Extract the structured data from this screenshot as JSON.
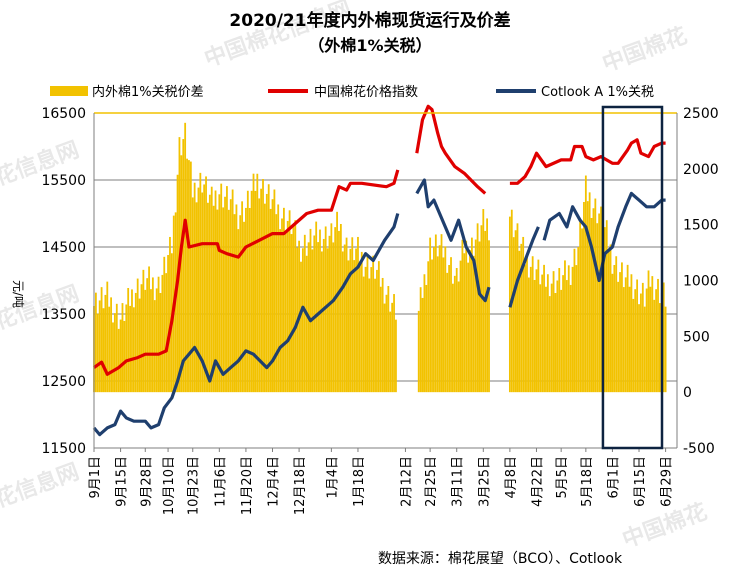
{
  "chart_data": {
    "type": "bar+line",
    "title": "2020/21年度内外棉现货运行及价差",
    "subtitle": "（外棉1%关税）",
    "ylabel_left": "元/吨",
    "source": "数据来源：棉花展望（BCO）、Cotlook",
    "legend": {
      "position": "top",
      "entries": [
        "内外棉1%关税价差",
        "中国棉花价格指数",
        "Cotlook A 1%关税"
      ]
    },
    "colors": {
      "spread_bar": "#f2c200",
      "china_index": "#e00000",
      "cotlook": "#1f3f6e",
      "highlight_box": "#0d2340",
      "axis": "#7f7f7f",
      "grid": "#7f7f7f",
      "top_border": "#f2c200"
    },
    "left_axis": {
      "min": 11500,
      "max": 16500,
      "ticks": [
        "16500",
        "15500",
        "14500",
        "13500",
        "12500",
        "11500"
      ]
    },
    "right_axis": {
      "min": -500,
      "max": 2500,
      "ticks": [
        "2500",
        "2000",
        "1500",
        "1000",
        "500",
        "0",
        "-500"
      ]
    },
    "x_tick_labels": [
      "9月1日",
      "9月15日",
      "9月28日",
      "10月10日",
      "10月23日",
      "11月6日",
      "11月20日",
      "12月4日",
      "12月18日",
      "1月4日",
      "1月18日",
      "2月12日",
      "2月25日",
      "3月11日",
      "3月25日",
      "4月8日",
      "4月22日",
      "5月5日",
      "5月18日",
      "6月1日",
      "6月15日",
      "6月29日"
    ],
    "x_tick_dates": [
      "2020-09-01",
      "2020-09-15",
      "2020-09-28",
      "2020-10-10",
      "2020-10-23",
      "2020-11-06",
      "2020-11-20",
      "2020-12-04",
      "2020-12-18",
      "2021-01-04",
      "2021-01-18",
      "2021-02-12",
      "2021-02-25",
      "2021-03-11",
      "2021-03-25",
      "2021-04-08",
      "2021-04-22",
      "2021-05-05",
      "2021-05-18",
      "2021-06-01",
      "2021-06-15",
      "2021-06-29"
    ],
    "x_end_date": "2021-07-05",
    "highlight_start_date": "2021-05-27",
    "series": [
      {
        "name": "中国棉花价格指数",
        "axis": "left",
        "type": "line",
        "points": [
          [
            "2020-09-01",
            12700
          ],
          [
            "2020-09-05",
            12780
          ],
          [
            "2020-09-08",
            12600
          ],
          [
            "2020-09-14",
            12700
          ],
          [
            "2020-09-18",
            12800
          ],
          [
            "2020-09-24",
            12850
          ],
          [
            "2020-09-28",
            12900
          ],
          [
            "2020-10-05",
            12900
          ],
          [
            "2020-10-09",
            12950
          ],
          [
            "2020-10-12",
            13400
          ],
          [
            "2020-10-15",
            14000
          ],
          [
            "2020-10-17",
            14500
          ],
          [
            "2020-10-19",
            14900
          ],
          [
            "2020-10-21",
            14500
          ],
          [
            "2020-10-28",
            14550
          ],
          [
            "2020-11-05",
            14550
          ],
          [
            "2020-11-06",
            14450
          ],
          [
            "2020-11-10",
            14400
          ],
          [
            "2020-11-16",
            14350
          ],
          [
            "2020-11-20",
            14500
          ],
          [
            "2020-11-27",
            14600
          ],
          [
            "2020-12-04",
            14700
          ],
          [
            "2020-12-10",
            14700
          ],
          [
            "2020-12-16",
            14850
          ],
          [
            "2020-12-22",
            15000
          ],
          [
            "2020-12-28",
            15050
          ],
          [
            "2021-01-04",
            15050
          ],
          [
            "2021-01-08",
            15400
          ],
          [
            "2021-01-12",
            15350
          ],
          [
            "2021-01-14",
            15450
          ],
          [
            "2021-01-20",
            15450
          ],
          [
            "2021-02-02",
            15400
          ],
          [
            "2021-02-06",
            15450
          ],
          [
            "2021-02-08",
            15650
          ],
          [
            "2021-02-18",
            15900
          ],
          [
            "2021-02-21",
            16400
          ],
          [
            "2021-02-24",
            16600
          ],
          [
            "2021-02-26",
            16550
          ],
          [
            "2021-03-01",
            16200
          ],
          [
            "2021-03-03",
            16000
          ],
          [
            "2021-03-05",
            15900
          ],
          [
            "2021-03-10",
            15700
          ],
          [
            "2021-03-15",
            15600
          ],
          [
            "2021-03-22",
            15400
          ],
          [
            "2021-03-26",
            15300
          ],
          [
            "2021-04-08",
            15450
          ],
          [
            "2021-04-12",
            15450
          ],
          [
            "2021-04-16",
            15550
          ],
          [
            "2021-04-19",
            15700
          ],
          [
            "2021-04-22",
            15900
          ],
          [
            "2021-04-27",
            15700
          ],
          [
            "2021-05-05",
            15800
          ],
          [
            "2021-05-10",
            15800
          ],
          [
            "2021-05-12",
            16000
          ],
          [
            "2021-05-16",
            16000
          ],
          [
            "2021-05-18",
            15850
          ],
          [
            "2021-05-22",
            15800
          ],
          [
            "2021-05-26",
            15850
          ],
          [
            "2021-06-01",
            15750
          ],
          [
            "2021-06-04",
            15750
          ],
          [
            "2021-06-09",
            15950
          ],
          [
            "2021-06-11",
            16050
          ],
          [
            "2021-06-14",
            16100
          ],
          [
            "2021-06-16",
            15900
          ],
          [
            "2021-06-20",
            15850
          ],
          [
            "2021-06-23",
            16000
          ],
          [
            "2021-06-27",
            16050
          ],
          [
            "2021-06-29",
            16050
          ]
        ],
        "gaps_after": [
          "2021-02-08",
          "2021-03-26"
        ]
      },
      {
        "name": "Cotlook A 1%关税",
        "axis": "left",
        "type": "line",
        "points": [
          [
            "2020-09-01",
            11800
          ],
          [
            "2020-09-04",
            11700
          ],
          [
            "2020-09-08",
            11800
          ],
          [
            "2020-09-12",
            11850
          ],
          [
            "2020-09-15",
            12050
          ],
          [
            "2020-09-18",
            11950
          ],
          [
            "2020-09-22",
            11900
          ],
          [
            "2020-09-28",
            11900
          ],
          [
            "2020-10-01",
            11800
          ],
          [
            "2020-10-05",
            11850
          ],
          [
            "2020-10-08",
            12100
          ],
          [
            "2020-10-12",
            12250
          ],
          [
            "2020-10-15",
            12500
          ],
          [
            "2020-10-18",
            12800
          ],
          [
            "2020-10-21",
            12900
          ],
          [
            "2020-10-24",
            13000
          ],
          [
            "2020-10-28",
            12800
          ],
          [
            "2020-11-01",
            12500
          ],
          [
            "2020-11-04",
            12800
          ],
          [
            "2020-11-08",
            12600
          ],
          [
            "2020-11-12",
            12700
          ],
          [
            "2020-11-16",
            12800
          ],
          [
            "2020-11-20",
            12950
          ],
          [
            "2020-11-24",
            12900
          ],
          [
            "2020-12-01",
            12700
          ],
          [
            "2020-12-04",
            12800
          ],
          [
            "2020-12-08",
            13000
          ],
          [
            "2020-12-12",
            13100
          ],
          [
            "2020-12-16",
            13300
          ],
          [
            "2020-12-20",
            13600
          ],
          [
            "2020-12-24",
            13400
          ],
          [
            "2020-12-28",
            13500
          ],
          [
            "2021-01-01",
            13600
          ],
          [
            "2021-01-05",
            13700
          ],
          [
            "2021-01-10",
            13900
          ],
          [
            "2021-01-14",
            14100
          ],
          [
            "2021-01-18",
            14200
          ],
          [
            "2021-01-22",
            14400
          ],
          [
            "2021-01-26",
            14300
          ],
          [
            "2021-02-01",
            14600
          ],
          [
            "2021-02-06",
            14800
          ],
          [
            "2021-02-08",
            15000
          ],
          [
            "2021-02-18",
            15300
          ],
          [
            "2021-02-22",
            15500
          ],
          [
            "2021-02-24",
            15100
          ],
          [
            "2021-02-27",
            15200
          ],
          [
            "2021-03-02",
            15000
          ],
          [
            "2021-03-05",
            14800
          ],
          [
            "2021-03-08",
            14600
          ],
          [
            "2021-03-12",
            14900
          ],
          [
            "2021-03-16",
            14500
          ],
          [
            "2021-03-20",
            14300
          ],
          [
            "2021-03-23",
            13800
          ],
          [
            "2021-03-26",
            13700
          ],
          [
            "2021-03-28",
            13900
          ],
          [
            "2021-04-08",
            13600
          ],
          [
            "2021-04-12",
            14000
          ],
          [
            "2021-04-16",
            14300
          ],
          [
            "2021-04-20",
            14600
          ],
          [
            "2021-04-23",
            14800
          ],
          [
            "2021-04-26",
            14600
          ],
          [
            "2021-04-29",
            14900
          ],
          [
            "2021-05-04",
            15000
          ],
          [
            "2021-05-08",
            14800
          ],
          [
            "2021-05-11",
            15100
          ],
          [
            "2021-05-15",
            14900
          ],
          [
            "2021-05-18",
            14800
          ],
          [
            "2021-05-21",
            14500
          ],
          [
            "2021-05-25",
            14000
          ],
          [
            "2021-05-28",
            14400
          ],
          [
            "2021-06-01",
            14500
          ],
          [
            "2021-06-04",
            14800
          ],
          [
            "2021-06-08",
            15100
          ],
          [
            "2021-06-11",
            15300
          ],
          [
            "2021-06-15",
            15200
          ],
          [
            "2021-06-19",
            15100
          ],
          [
            "2021-06-23",
            15100
          ],
          [
            "2021-06-27",
            15200
          ],
          [
            "2021-06-29",
            15200
          ]
        ],
        "gaps_after": [
          "2021-02-08",
          "2021-03-28",
          "2021-04-23"
        ]
      },
      {
        "name": "内外棉1%关税价差",
        "axis": "right",
        "type": "bar",
        "points": [
          [
            "2020-09-01",
            800
          ],
          [
            "2020-09-08",
            850
          ],
          [
            "2020-09-15",
            650
          ],
          [
            "2020-09-22",
            900
          ],
          [
            "2020-09-28",
            1000
          ],
          [
            "2020-10-05",
            950
          ],
          [
            "2020-10-12",
            1300
          ],
          [
            "2020-10-16",
            2200
          ],
          [
            "2020-10-19",
            2300
          ],
          [
            "2020-10-23",
            1800
          ],
          [
            "2020-10-28",
            1900
          ],
          [
            "2020-11-02",
            1700
          ],
          [
            "2020-11-06",
            1800
          ],
          [
            "2020-11-12",
            1700
          ],
          [
            "2020-11-16",
            1600
          ],
          [
            "2020-11-20",
            1650
          ],
          [
            "2020-11-26",
            1900
          ],
          [
            "2020-11-30",
            1800
          ],
          [
            "2020-12-04",
            1700
          ],
          [
            "2020-12-08",
            1600
          ],
          [
            "2020-12-14",
            1500
          ],
          [
            "2020-12-18",
            1300
          ],
          [
            "2020-12-24",
            1350
          ],
          [
            "2020-12-28",
            1400
          ],
          [
            "2021-01-04",
            1400
          ],
          [
            "2021-01-08",
            1500
          ],
          [
            "2021-01-12",
            1300
          ],
          [
            "2021-01-18",
            1250
          ],
          [
            "2021-01-22",
            1150
          ],
          [
            "2021-01-27",
            1100
          ],
          [
            "2021-02-02",
            900
          ],
          [
            "2021-02-05",
            800
          ],
          [
            "2021-02-08",
            700
          ],
          [
            "2021-02-19",
            700
          ],
          [
            "2021-02-23",
            1100
          ],
          [
            "2021-02-25",
            1300
          ],
          [
            "2021-03-01",
            1300
          ],
          [
            "2021-03-05",
            1250
          ],
          [
            "2021-03-11",
            1000
          ],
          [
            "2021-03-15",
            1300
          ],
          [
            "2021-03-19",
            1300
          ],
          [
            "2021-03-25",
            1500
          ],
          [
            "2021-03-29",
            1500
          ],
          [
            "2021-04-08",
            1600
          ],
          [
            "2021-04-12",
            1400
          ],
          [
            "2021-04-16",
            1200
          ],
          [
            "2021-04-22",
            1100
          ],
          [
            "2021-04-26",
            1000
          ],
          [
            "2021-04-30",
            1000
          ],
          [
            "2021-05-05",
            1000
          ],
          [
            "2021-05-10",
            1100
          ],
          [
            "2021-05-14",
            1300
          ],
          [
            "2021-05-18",
            1800
          ],
          [
            "2021-05-21",
            1700
          ],
          [
            "2021-05-25",
            1600
          ],
          [
            "2021-05-29",
            1400
          ],
          [
            "2021-06-01",
            1200
          ],
          [
            "2021-06-04",
            1100
          ],
          [
            "2021-06-08",
            1000
          ],
          [
            "2021-06-11",
            1000
          ],
          [
            "2021-06-15",
            900
          ],
          [
            "2021-06-18",
            850
          ],
          [
            "2021-06-21",
            1000
          ],
          [
            "2021-06-24",
            950
          ],
          [
            "2021-06-29",
            850
          ]
        ],
        "gaps_after": [
          "2021-02-08",
          "2021-03-29"
        ]
      }
    ]
  }
}
